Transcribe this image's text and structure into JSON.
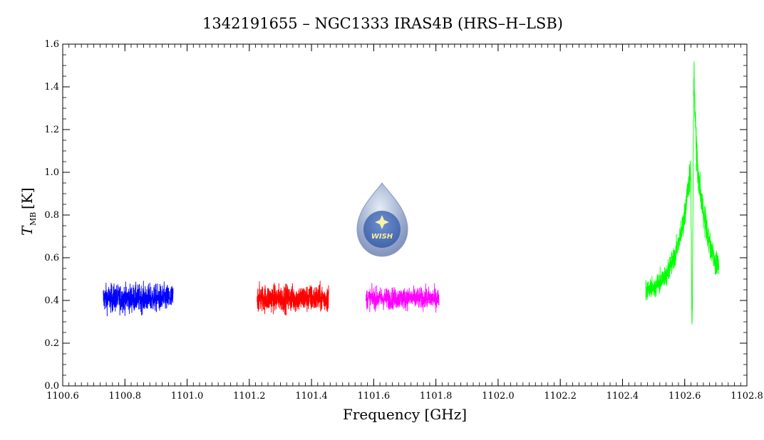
{
  "chart_data": {
    "type": "line",
    "title": "1342191655 – NGC1333 IRAS4B (HRS–H–LSB)",
    "xlabel": "Frequency [GHz]",
    "ylabel_main": "T",
    "ylabel_sub": "MB",
    "ylabel_unit": "[K]",
    "xlim": [
      1100.6,
      1102.8
    ],
    "ylim": [
      0.0,
      1.6
    ],
    "x_ticks": [
      "1100.6",
      "1100.8",
      "1101.0",
      "1101.2",
      "1101.4",
      "1101.6",
      "1101.8",
      "1102.0",
      "1102.2",
      "1102.4",
      "1102.6",
      "1102.8"
    ],
    "y_ticks": [
      "0.0",
      "0.2",
      "0.4",
      "0.6",
      "0.8",
      "1.0",
      "1.2",
      "1.4",
      "1.6"
    ],
    "grid": false,
    "series": [
      {
        "color": "#0000ff",
        "x_range": [
          1100.73,
          1100.955
        ],
        "baseline": 0.41,
        "noise_amplitude": 0.09,
        "min": 0.16,
        "max": 0.63
      },
      {
        "color": "#ff0000",
        "x_range": [
          1101.225,
          1101.455
        ],
        "baseline": 0.41,
        "noise_amplitude": 0.09,
        "min": 0.11,
        "max": 0.65
      },
      {
        "color": "#ff00ff",
        "x_range": [
          1101.575,
          1101.81
        ],
        "baseline": 0.41,
        "noise_amplitude": 0.07,
        "min": 0.24,
        "max": 0.57
      },
      {
        "color": "#00ff00",
        "x_range": [
          1102.475,
          1102.71
        ],
        "baseline": 0.42,
        "noise_amplitude": 0.05,
        "min": 0.13,
        "max": 1.53,
        "profile": {
          "center": 1102.63,
          "peak": 1.52,
          "broad_amplitude": 0.75,
          "broad_width": 0.045,
          "absorption_depth": 0.85,
          "absorption_width": 0.003
        }
      }
    ]
  },
  "logo": {
    "text": "WISH"
  }
}
